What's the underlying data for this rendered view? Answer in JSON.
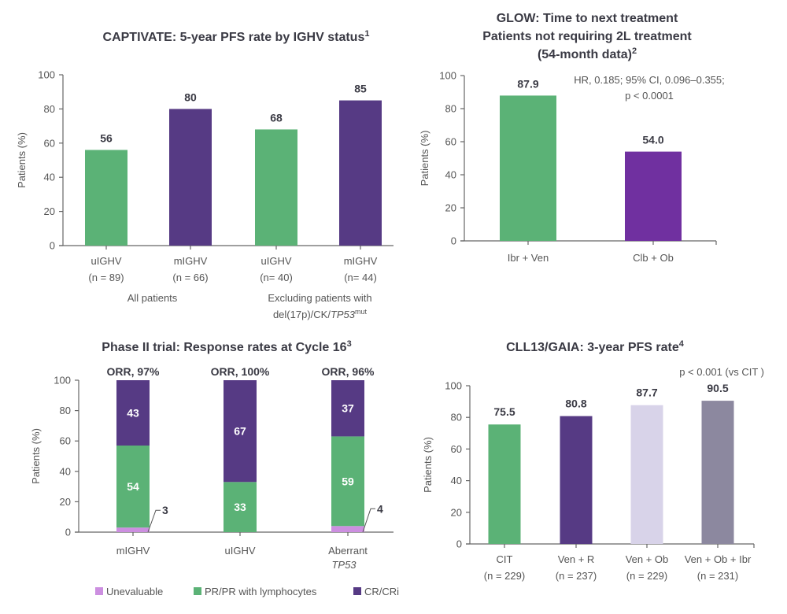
{
  "chart_data": [
    {
      "id": "captivate",
      "type": "bar",
      "title": "CAPTIVATE: 5-year PFS rate by IGHV status",
      "title_superscript": "1",
      "ylabel": "Patients (%)",
      "xlabel": "",
      "ylim": [
        0,
        100
      ],
      "yticks": [
        0,
        20,
        40,
        60,
        80,
        100
      ],
      "grid": false,
      "categories": [
        "uIGHV",
        "mIGHV",
        "uIGHV",
        "mIGHV"
      ],
      "sublabels": [
        "(n = 89)",
        "(n = 66)",
        "(n=  40)",
        "(n=  44)"
      ],
      "values": [
        56,
        80,
        68,
        85
      ],
      "value_labels": [
        "56",
        "80",
        "68",
        "85"
      ],
      "colors": [
        "#5bb276",
        "#563a84",
        "#5bb276",
        "#563a84"
      ],
      "groups": [
        {
          "label": "All patients",
          "span": [
            0,
            1
          ]
        },
        {
          "label": "Excluding patients with",
          "label_line2": "del(17p)/CK/",
          "label_italic": "TP53",
          "label_sup": "mut",
          "span": [
            2,
            3
          ]
        }
      ]
    },
    {
      "id": "glow",
      "type": "bar",
      "title_lines": [
        "GLOW: Time to next treatment",
        "Patients not requiring 2L treatment",
        "(54-month data)"
      ],
      "title_superscript": "2",
      "ylabel": "Patients (%)",
      "ylim": [
        0,
        100
      ],
      "yticks": [
        0,
        20,
        40,
        60,
        80,
        100
      ],
      "grid": false,
      "categories": [
        "Ibr + Ven",
        "Clb + Ob"
      ],
      "values": [
        87.9,
        54.0
      ],
      "value_labels": [
        "87.9",
        "54.0"
      ],
      "colors": [
        "#5bb276",
        "#7030a0"
      ],
      "annotation": [
        "HR, 0.185; 95% CI, 0.096–0.355;",
        "p < 0.0001"
      ]
    },
    {
      "id": "phase2",
      "type": "bar",
      "stacked": true,
      "title": "Phase II trial: Response rates at Cycle 16",
      "title_superscript": "3",
      "ylabel": "Patients (%)",
      "ylim": [
        0,
        100
      ],
      "yticks": [
        0,
        20,
        40,
        60,
        80,
        100
      ],
      "grid": false,
      "categories": [
        "mIGHV",
        "uIGHV",
        "Aberrant"
      ],
      "category_line2_italic": [
        "",
        "",
        "TP53"
      ],
      "orr_labels": [
        "ORR, 97%",
        "ORR, 100%",
        "ORR, 96%"
      ],
      "series": [
        {
          "name": "Unevaluable",
          "color": "#cc8fe0",
          "values": [
            3,
            0,
            4
          ]
        },
        {
          "name": "PR/PR with lymphocytes",
          "color": "#5bb276",
          "values": [
            54,
            33,
            59
          ]
        },
        {
          "name": "CR/CRi",
          "color": "#563a84",
          "values": [
            43,
            67,
            37
          ]
        }
      ],
      "legend_position": "bottom"
    },
    {
      "id": "cll13",
      "type": "bar",
      "title": "CLL13/GAIA: 3-year PFS rate",
      "title_superscript": "4",
      "ylabel": "Patients (%)",
      "ylim": [
        0,
        100
      ],
      "yticks": [
        0,
        20,
        40,
        60,
        80,
        100
      ],
      "grid": false,
      "categories": [
        "CIT",
        "Ven + R",
        "Ven + Ob",
        "Ven + Ob + Ibr"
      ],
      "sublabels": [
        "(n = 229)",
        "(n = 237)",
        "(n = 229)",
        "(n = 231)"
      ],
      "values": [
        75.5,
        80.8,
        87.7,
        90.5
      ],
      "value_labels": [
        "75.5",
        "80.8",
        "87.7",
        "90.5"
      ],
      "colors": [
        "#5bb276",
        "#563a84",
        "#d8d3e9",
        "#8c889f"
      ],
      "annotation": [
        "p < 0.001 (vs CIT )"
      ]
    }
  ]
}
